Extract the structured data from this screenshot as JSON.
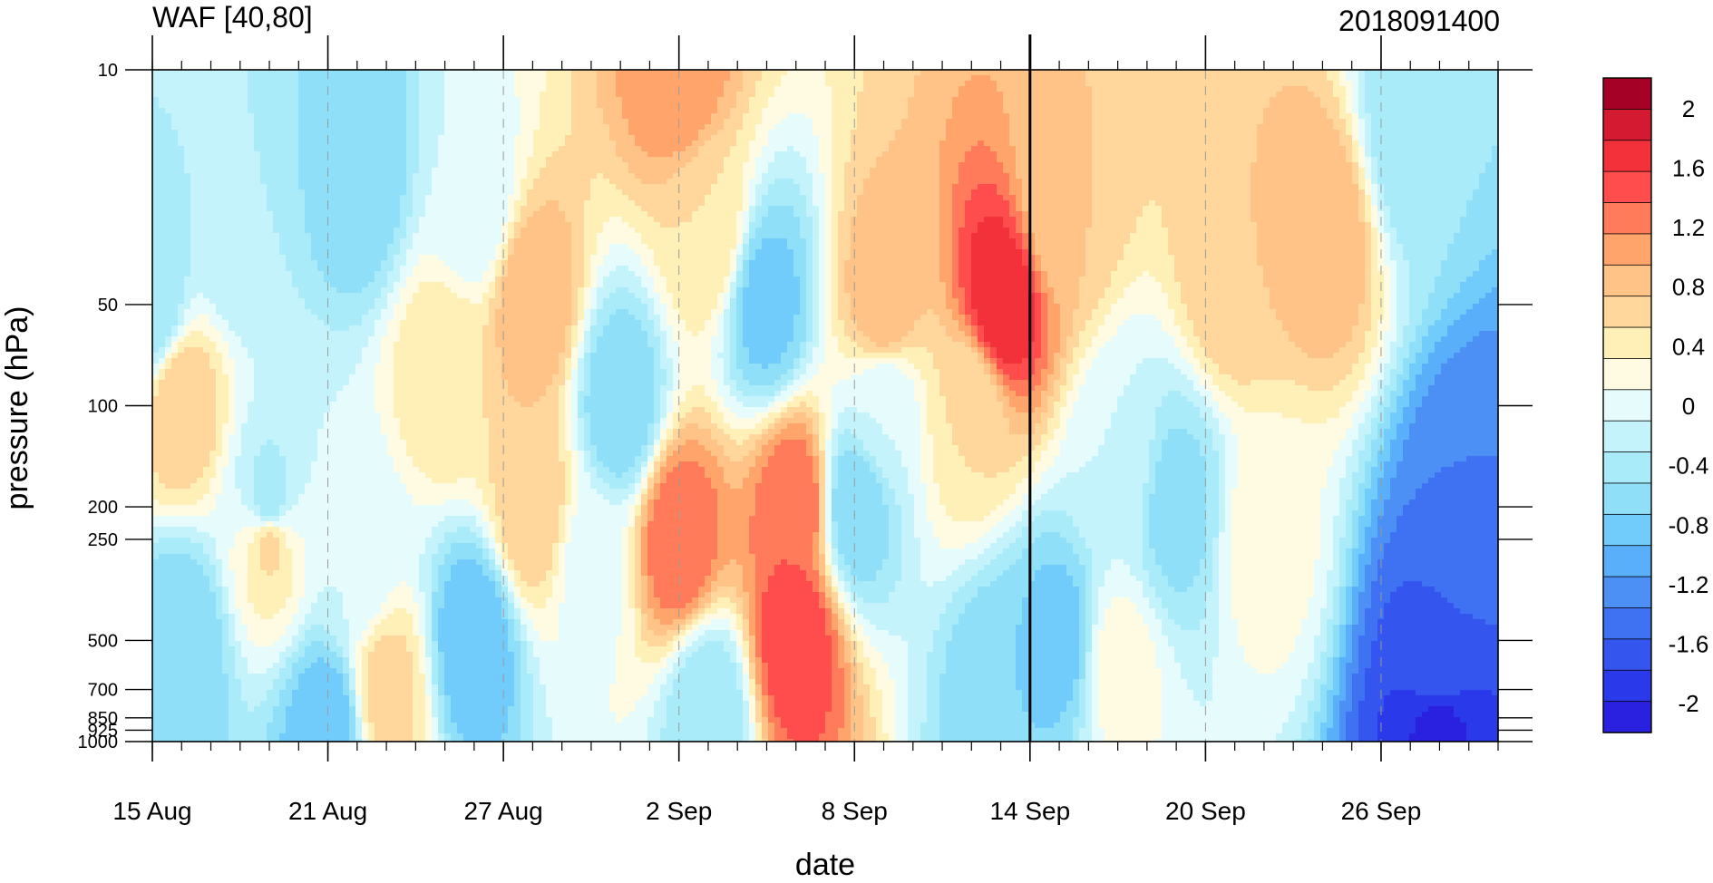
{
  "chart_data": {
    "type": "heatmap",
    "subtype": "filled-contour time-pressure cross-section",
    "title": "WAF [40,80]",
    "subtitle_right": "2018091400",
    "xlabel": "date",
    "ylabel": "pressure (hPa)",
    "x_tick_labels": [
      "15 Aug",
      "21 Aug",
      "27 Aug",
      "2 Sep",
      "8 Sep",
      "14 Sep",
      "20 Sep",
      "26 Sep"
    ],
    "x_tick_dates": [
      "2018-08-15",
      "2018-08-21",
      "2018-08-27",
      "2018-09-02",
      "2018-09-08",
      "2018-09-14",
      "2018-09-20",
      "2018-09-26"
    ],
    "x_range": [
      "2018-08-15",
      "2018-09-30"
    ],
    "y_scale": "log",
    "y_reversed": true,
    "y_range": [
      1000,
      10
    ],
    "y_tick_values": [
      10,
      50,
      100,
      200,
      250,
      500,
      700,
      850,
      925,
      1000
    ],
    "y_tick_labels": [
      "10",
      "50",
      "100",
      "200",
      "250",
      "500",
      "700",
      "850",
      "925",
      "1000"
    ],
    "marked_date": "2018-09-14",
    "colorbar": {
      "levels": [
        -2.2,
        -2,
        -1.8,
        -1.6,
        -1.4,
        -1.2,
        -1,
        -0.8,
        -0.6,
        -0.4,
        -0.2,
        0,
        0.2,
        0.4,
        0.6,
        0.8,
        1,
        1.2,
        1.4,
        1.6,
        1.8,
        2,
        2.2
      ],
      "tick_labels": [
        "2",
        "1.6",
        "1.2",
        "0.8",
        "0.4",
        "0",
        "-0.4",
        "-0.8",
        "-1.2",
        "-1.6",
        "-2"
      ],
      "tick_values": [
        2,
        1.6,
        1.2,
        0.8,
        0.4,
        0,
        -0.4,
        -0.8,
        -1.2,
        -1.6,
        -2
      ],
      "colors_high_to_low": [
        "#a50026",
        "#d31a31",
        "#f2313b",
        "#ff4d4d",
        "#ff7b59",
        "#ffa46b",
        "#ffc387",
        "#ffd69c",
        "#fff0b8",
        "#fffbe2",
        "#e6fbfc",
        "#c5f3fb",
        "#a9ebf9",
        "#8fdff9",
        "#72ccfb",
        "#5aaffb",
        "#4c90f5",
        "#3f72f2",
        "#3456ef",
        "#2a3aeb",
        "#2a20e0"
      ]
    },
    "field_features": [
      {
        "date": "2018-08-15",
        "hPa": 50,
        "value": -0.6
      },
      {
        "date": "2018-08-16",
        "hPa": 100,
        "value": 0.6
      },
      {
        "date": "2018-08-16",
        "hPa": 500,
        "value": -0.8
      },
      {
        "date": "2018-08-18",
        "hPa": 30,
        "value": -0.4
      },
      {
        "date": "2018-08-19",
        "hPa": 200,
        "value": -0.6
      },
      {
        "date": "2018-08-19",
        "hPa": 250,
        "value": 0.5
      },
      {
        "date": "2018-08-22",
        "hPa": 20,
        "value": -0.8
      },
      {
        "date": "2018-08-22",
        "hPa": 300,
        "value": -0.2
      },
      {
        "date": "2018-08-21",
        "hPa": 925,
        "value": -1.0
      },
      {
        "date": "2018-08-23",
        "hPa": 700,
        "value": 0.5
      },
      {
        "date": "2018-08-25",
        "hPa": 80,
        "value": 0.4
      },
      {
        "date": "2018-08-26",
        "hPa": 500,
        "value": -1.0
      },
      {
        "date": "2018-08-26",
        "hPa": 25,
        "value": -0.2
      },
      {
        "date": "2018-08-28",
        "hPa": 50,
        "value": 0.8
      },
      {
        "date": "2018-08-28",
        "hPa": 200,
        "value": 0.6
      },
      {
        "date": "2018-08-30",
        "hPa": 300,
        "value": -0.1
      },
      {
        "date": "2018-08-31",
        "hPa": 100,
        "value": -0.8
      },
      {
        "date": "2018-09-02",
        "hPa": 10,
        "value": 1.0
      },
      {
        "date": "2018-09-02",
        "hPa": 250,
        "value": 1.2
      },
      {
        "date": "2018-09-03",
        "hPa": 30,
        "value": 0.4
      },
      {
        "date": "2018-09-03",
        "hPa": 800,
        "value": -0.6
      },
      {
        "date": "2018-09-05",
        "hPa": 50,
        "value": -0.9
      },
      {
        "date": "2018-09-06",
        "hPa": 200,
        "value": 1.2
      },
      {
        "date": "2018-09-06",
        "hPa": 500,
        "value": 1.4
      },
      {
        "date": "2018-09-08",
        "hPa": 200,
        "value": -0.8
      },
      {
        "date": "2018-09-09",
        "hPa": 50,
        "value": 0.8
      },
      {
        "date": "2018-09-09",
        "hPa": 100,
        "value": -0.2
      },
      {
        "date": "2018-09-12",
        "hPa": 100,
        "value": 0.4
      },
      {
        "date": "2018-09-13",
        "hPa": 50,
        "value": 1.6
      },
      {
        "date": "2018-09-13",
        "hPa": 700,
        "value": -0.8
      },
      {
        "date": "2018-09-15",
        "hPa": 25,
        "value": 0.6
      },
      {
        "date": "2018-09-15",
        "hPa": 500,
        "value": -0.9
      },
      {
        "date": "2018-09-17",
        "hPa": 150,
        "value": -0.2
      },
      {
        "date": "2018-09-17",
        "hPa": 600,
        "value": 0.1
      },
      {
        "date": "2018-09-19",
        "hPa": 200,
        "value": -0.7
      },
      {
        "date": "2018-09-21",
        "hPa": 40,
        "value": 0.6
      },
      {
        "date": "2018-09-22",
        "hPa": 250,
        "value": 0.1
      },
      {
        "date": "2018-09-24",
        "hPa": 30,
        "value": 0.8
      },
      {
        "date": "2018-09-27",
        "hPa": 15,
        "value": -0.6
      },
      {
        "date": "2018-09-29",
        "hPa": 200,
        "value": -1.4
      },
      {
        "date": "2018-09-28",
        "hPa": 600,
        "value": -1.6
      },
      {
        "date": "2018-09-28",
        "hPa": 920,
        "value": -2.1
      }
    ]
  }
}
